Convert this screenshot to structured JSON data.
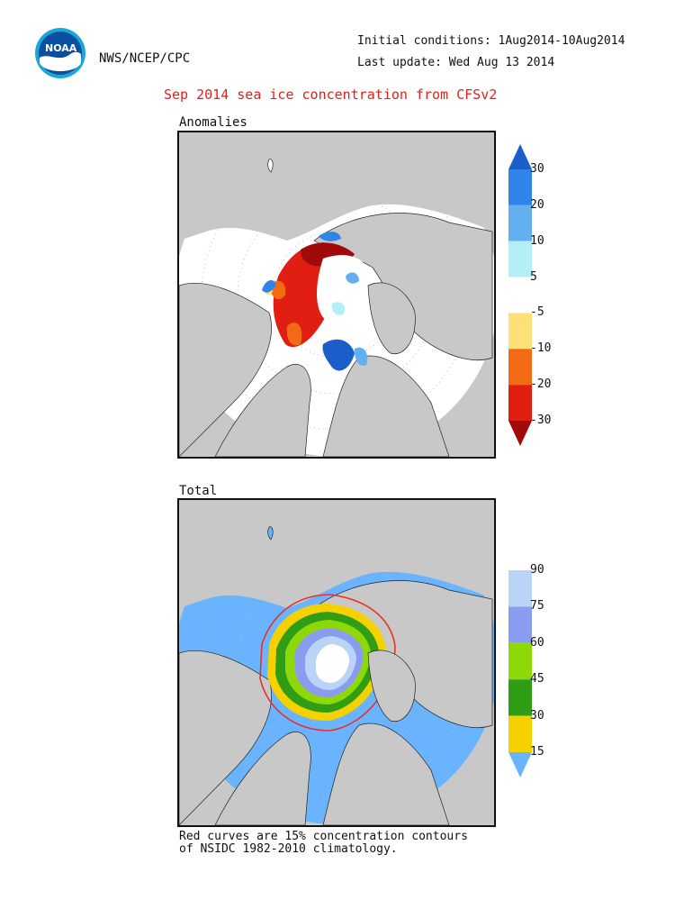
{
  "header": {
    "org": "NWS/NCEP/CPC",
    "initial_conditions": "Initial conditions: 1Aug2014-10Aug2014",
    "last_update": "Last update: Wed Aug 13 2014",
    "title": "Sep 2014 sea ice concentration from CFSv2"
  },
  "logo": {
    "text": "NOAA",
    "icon": "noaa-logo"
  },
  "panels": {
    "anomalies": {
      "label": "Anomalies",
      "colorbar": {
        "labels": [
          "30",
          "20",
          "10",
          "5",
          "-5",
          "-10",
          "-20",
          "-30"
        ],
        "colors": [
          "#1a5fc9",
          "#2f84ea",
          "#64aff0",
          "#b4eef6",
          "#ffffff",
          "#fde07a",
          "#f26b14",
          "#e01e12",
          "#a00a0a"
        ]
      }
    },
    "total": {
      "label": "Total",
      "colorbar": {
        "labels": [
          "90",
          "75",
          "60",
          "45",
          "30",
          "15"
        ],
        "colors": [
          "#ffffff",
          "#bcd3f8",
          "#8a9cf0",
          "#8ed80a",
          "#2f9e15",
          "#f6d100",
          "#6ab4ff"
        ]
      }
    }
  },
  "footnote": {
    "line1": "Red curves are 15% concentration contours",
    "line2": "of NSIDC 1982-2010 climatology."
  },
  "colors": {
    "land": "#c8c8c8",
    "ocean_anomaly": "#ffffff",
    "ocean_total": "#6ab4ff",
    "contour": "#e8302a",
    "title": "#e0201b"
  }
}
